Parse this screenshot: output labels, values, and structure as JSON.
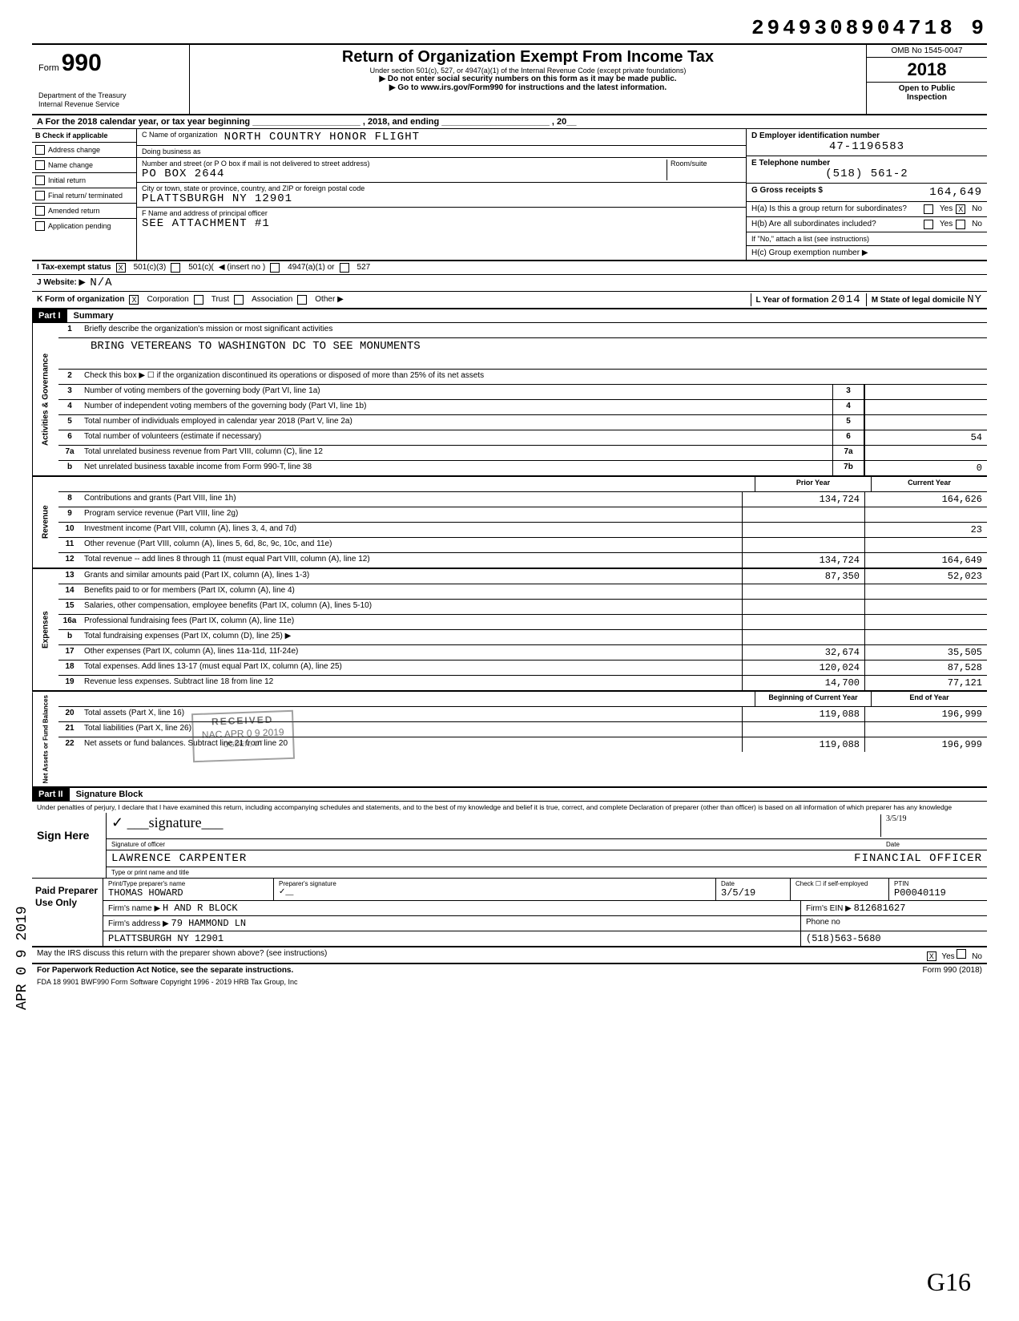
{
  "doc_id": "2949308904718 9",
  "header": {
    "form_label": "Form",
    "form_number": "990",
    "dept1": "Department of the Treasury",
    "dept2": "Internal Revenue Service",
    "title": "Return of Organization Exempt From Income Tax",
    "sub1": "Under section 501(c), 527, or 4947(a)(1) of the Internal Revenue Code (except private foundations)",
    "sub2": "▶ Do not enter social security numbers on this form as it may be made public.",
    "sub3": "▶ Go to www.irs.gov/Form990 for instructions and the latest information.",
    "omb": "OMB No 1545-0047",
    "year": "2018",
    "open1": "Open to Public",
    "open2": "Inspection"
  },
  "line_a": "A  For the 2018 calendar year, or tax year beginning ______________________ , 2018, and ending ______________________ , 20__",
  "checkboxes": {
    "header": "B Check if applicable",
    "items": [
      "Address change",
      "Name change",
      "Initial return",
      "Final return/ terminated",
      "Amended return",
      "Application pending"
    ]
  },
  "org": {
    "name_label": "C Name of organization",
    "name": "NORTH COUNTRY HONOR FLIGHT",
    "dba_label": "Doing business as",
    "street_label": "Number and street (or P O  box if mail is not delivered to street address)",
    "street": "PO BOX 2644",
    "room_label": "Room/suite",
    "city_label": "City or town, state or province, country, and ZIP or foreign postal code",
    "city": "PLATTSBURGH NY 12901",
    "officer_label": "F   Name and address of principal officer",
    "officer": "SEE ATTACHMENT #1"
  },
  "right": {
    "ein_label": "D Employer identification number",
    "ein": "47-1196583",
    "tel_label": "E  Telephone number",
    "tel": "(518) 561-2",
    "gross_label": "G  Gross receipts $",
    "gross": "164,649",
    "ha": "H(a)  Is this a group return for subordinates?",
    "ha_yes": "Yes",
    "ha_no": "No",
    "hb": "H(b)  Are all subordinates included?",
    "hb_yes": "Yes",
    "hb_no": "No",
    "hb_note": "If \"No,\" attach a list (see instructions)",
    "hc": "H(c)  Group exemption number  ▶"
  },
  "tax_status": {
    "label": "I   Tax-exempt status",
    "c3": "501(c)(3)",
    "c": "501(c)(",
    "insert": "◀ (insert no )",
    "a1": "4947(a)(1) or",
    "s527": "527"
  },
  "website": {
    "label": "J  Website: ▶",
    "value": "N/A"
  },
  "korg": {
    "label": "K  Form of organization",
    "corp": "Corporation",
    "trust": "Trust",
    "assoc": "Association",
    "other": "Other ▶",
    "year_label": "L Year of formation",
    "year": "2014",
    "state_label": "M  State of legal domicile",
    "state": "NY"
  },
  "part1": {
    "label": "Part I",
    "title": "Summary",
    "line1_label": "1",
    "line1_desc": "Briefly describe the organization's mission or most significant activities",
    "mission": "BRING VETEREANS TO WASHINGTON DC TO SEE MONUMENTS",
    "gov_rows": [
      {
        "n": "2",
        "desc": "Check this box ▶ ☐  if the organization discontinued its operations or disposed of more than 25% of its net assets"
      },
      {
        "n": "3",
        "desc": "Number of voting members of the governing body (Part VI, line 1a)",
        "lab": "3",
        "v": ""
      },
      {
        "n": "4",
        "desc": "Number of independent voting members of the governing body (Part VI, line 1b)",
        "lab": "4",
        "v": ""
      },
      {
        "n": "5",
        "desc": "Total number of individuals employed in calendar year 2018 (Part V, line 2a)",
        "lab": "5",
        "v": ""
      },
      {
        "n": "6",
        "desc": "Total number of volunteers (estimate if necessary)",
        "lab": "6",
        "v": "54"
      },
      {
        "n": "7a",
        "desc": "Total unrelated business revenue from Part VIII, column (C), line 12",
        "lab": "7a",
        "v": ""
      },
      {
        "n": "b",
        "desc": "Net unrelated business taxable income from Form 990-T, line 38",
        "lab": "7b",
        "v": "0"
      }
    ],
    "col_prior": "Prior Year",
    "col_current": "Current Year",
    "rev_rows": [
      {
        "n": "8",
        "desc": "Contributions and grants (Part VIII, line 1h)",
        "p": "134,724",
        "c": "164,626"
      },
      {
        "n": "9",
        "desc": "Program service revenue (Part VIII, line 2g)",
        "p": "",
        "c": ""
      },
      {
        "n": "10",
        "desc": "Investment income (Part VIII, column (A), lines 3, 4, and 7d)",
        "p": "",
        "c": "23"
      },
      {
        "n": "11",
        "desc": "Other revenue (Part VIII, column (A), lines 5, 6d, 8c, 9c, 10c, and 11e)",
        "p": "",
        "c": ""
      },
      {
        "n": "12",
        "desc": "Total revenue -- add lines 8 through 11 (must equal Part VIII, column (A), line 12)",
        "p": "134,724",
        "c": "164,649"
      }
    ],
    "exp_rows": [
      {
        "n": "13",
        "desc": "Grants and similar amounts paid (Part IX, column (A), lines 1-3)",
        "p": "87,350",
        "c": "52,023"
      },
      {
        "n": "14",
        "desc": "Benefits paid to or for members (Part IX, column (A), line 4)",
        "p": "",
        "c": ""
      },
      {
        "n": "15",
        "desc": "Salaries, other compensation, employee benefits (Part IX, column (A), lines 5-10)",
        "p": "",
        "c": ""
      },
      {
        "n": "16a",
        "desc": "Professional fundraising fees (Part IX, column (A), line 11e)",
        "p": "",
        "c": ""
      },
      {
        "n": "b",
        "desc": "Total fundraising expenses (Part IX, column (D), line 25)   ▶",
        "p": "",
        "c": ""
      },
      {
        "n": "17",
        "desc": "Other expenses (Part IX, column (A), lines 11a-11d, 11f-24e)",
        "p": "32,674",
        "c": "35,505"
      },
      {
        "n": "18",
        "desc": "Total expenses. Add lines 13-17 (must equal Part IX, column (A), line 25)",
        "p": "120,024",
        "c": "87,528"
      },
      {
        "n": "19",
        "desc": "Revenue less expenses. Subtract line 18 from line 12",
        "p": "14,700",
        "c": "77,121"
      }
    ],
    "col_begin": "Beginning of Current Year",
    "col_end": "End of Year",
    "net_rows": [
      {
        "n": "20",
        "desc": "Total assets (Part X, line 16)",
        "p": "119,088",
        "c": "196,999"
      },
      {
        "n": "21",
        "desc": "Total liabilities (Part X, line 26)",
        "p": "",
        "c": ""
      },
      {
        "n": "22",
        "desc": "Net assets or fund balances. Subtract line 21 from line 20",
        "p": "119,088",
        "c": "196,999"
      }
    ],
    "side_gov": "Activities & Governance",
    "side_rev": "Revenue",
    "side_exp": "Expenses",
    "side_net": "Net Assets or Fund Balances"
  },
  "part2": {
    "label": "Part II",
    "title": "Signature Block",
    "penalty": "Under penalties of perjury, I declare that I have examined this return, including accompanying schedules and statements, and to the best of my knowledge and belief it is true, correct, and complete  Declaration of preparer (other than officer) is based on all information of which preparer has any knowledge",
    "sign_here": "Sign Here",
    "sig_label": "Signature of officer",
    "date_label": "Date",
    "date_val": "3/5/19",
    "name": "LAWRENCE CARPENTER",
    "title_val": "FINANCIAL OFFICER",
    "name_label": "Type or print name and title"
  },
  "preparer": {
    "left": "Paid Preparer Use Only",
    "h1": "Print/Type preparer's name",
    "h2": "Preparer's signature",
    "h3": "Date",
    "h4": "Check ☐ if self-employed",
    "h5": "PTIN",
    "name": "THOMAS HOWARD",
    "date": "3/5/19",
    "ptin": "P00040119",
    "firm_label": "Firm's name   ▶",
    "firm": "H AND R BLOCK",
    "ein_label": "Firm's EIN ▶",
    "ein": "812681627",
    "addr_label": "Firm's address  ▶",
    "addr1": "79 HAMMOND LN",
    "addr2": "PLATTSBURGH NY 12901",
    "phone_label": "Phone no",
    "phone": "(518)563-5680"
  },
  "footer": {
    "discuss": "May the IRS discuss this return with the preparer shown above? (see instructions)",
    "yes": "Yes",
    "no": "No",
    "pra": "For Paperwork Reduction Act Notice, see the separate instructions.",
    "form": "Form 990 (2018)",
    "fda": "FDA     18  9901      BWF990      Form Software Copyright 1996 - 2019 HRB Tax Group, Inc"
  },
  "stamps": {
    "received": "RECEIVED",
    "received2": "NAC APR 0 9 2019",
    "received3": "OGDEN, UT",
    "side_date": "APR 0 9 2019",
    "initials": "G16"
  }
}
